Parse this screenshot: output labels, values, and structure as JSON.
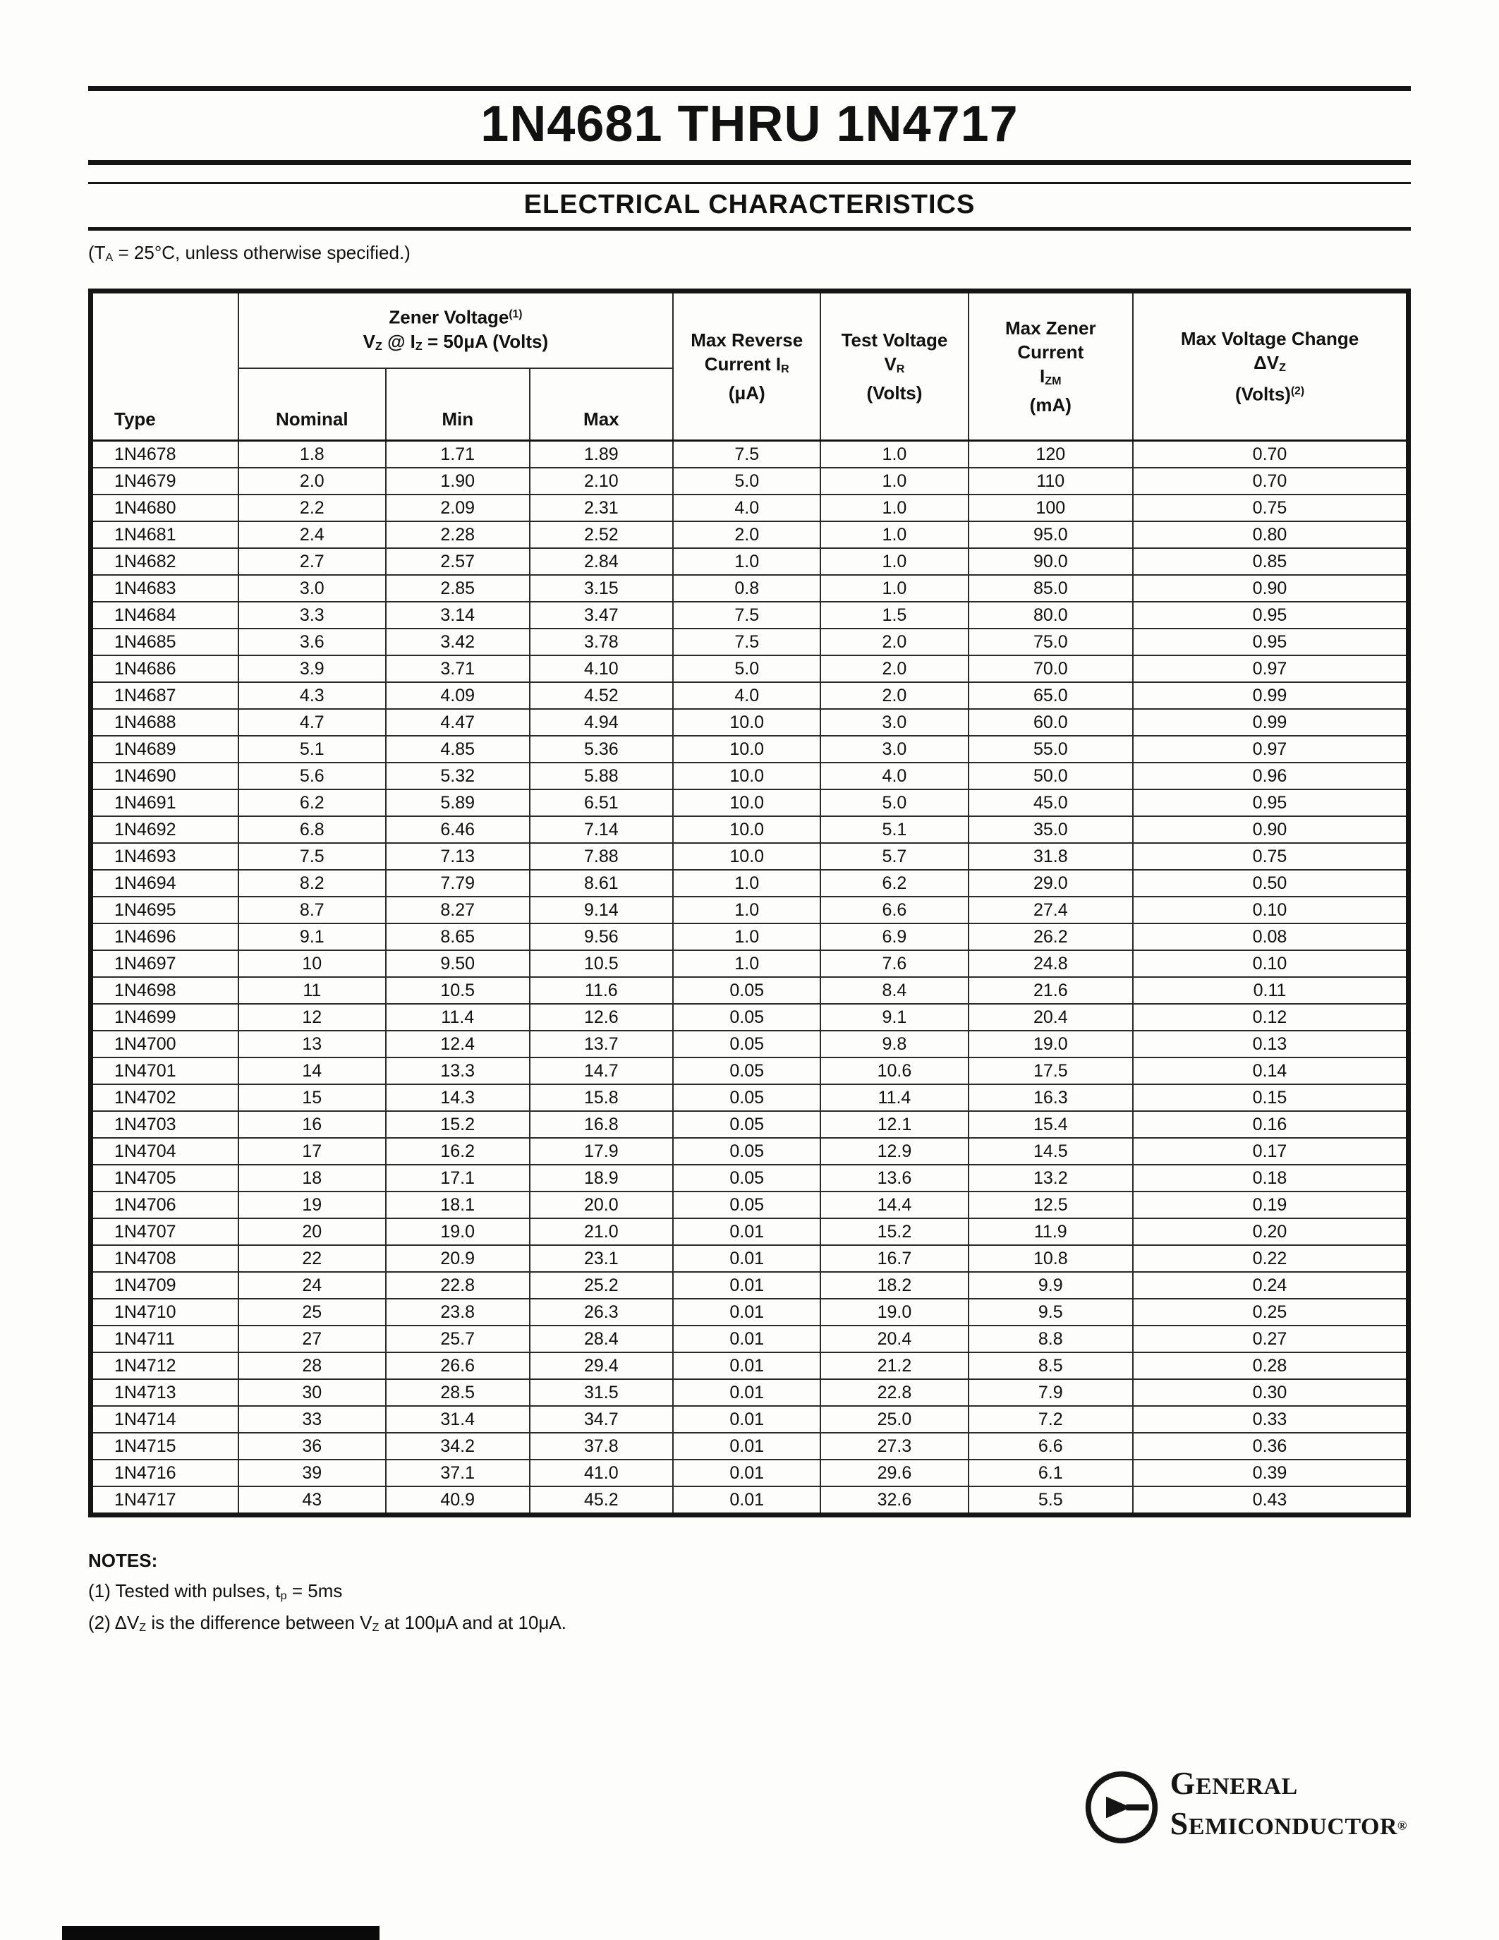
{
  "page": {
    "title": "1N4681 THRU 1N4717",
    "section_title": "ELECTRICAL CHARACTERISTICS",
    "condition": {
      "pre": "(T",
      "sub": "A",
      "post": " = 25°C, unless otherwise specified.)"
    }
  },
  "table": {
    "header": {
      "type_label": "Type",
      "zener": {
        "title": "Zener Voltage",
        "title_sup": "(1)",
        "l2_p1": "V",
        "l2_s1": "Z",
        "l2_p2": " @ I",
        "l2_s2": "Z",
        "l2_p3": " = 50μA (Volts)",
        "nominal": "Nominal",
        "min": "Min",
        "max": "Max"
      },
      "reverse": {
        "l1": "Max Reverse",
        "l2": "Current I",
        "l2_sub": "R",
        "l3": "(μA)"
      },
      "test": {
        "l1": "Test Voltage",
        "l2": "V",
        "l2_sub": "R",
        "l3": "(Volts)"
      },
      "izm": {
        "l1": "Max Zener",
        "l2": "Current",
        "l3": "I",
        "l3_sub": "ZM",
        "l4": "(mA)"
      },
      "dvz": {
        "l1": "Max Voltage Change",
        "l2": "ΔV",
        "l2_sub": "Z",
        "l3": "(Volts)",
        "l3_sup": "(2)"
      }
    },
    "rows": [
      [
        "1N4678",
        "1.8",
        "1.71",
        "1.89",
        "7.5",
        "1.0",
        "120",
        "0.70"
      ],
      [
        "1N4679",
        "2.0",
        "1.90",
        "2.10",
        "5.0",
        "1.0",
        "110",
        "0.70"
      ],
      [
        "1N4680",
        "2.2",
        "2.09",
        "2.31",
        "4.0",
        "1.0",
        "100",
        "0.75"
      ],
      [
        "1N4681",
        "2.4",
        "2.28",
        "2.52",
        "2.0",
        "1.0",
        "95.0",
        "0.80"
      ],
      [
        "1N4682",
        "2.7",
        "2.57",
        "2.84",
        "1.0",
        "1.0",
        "90.0",
        "0.85"
      ],
      [
        "1N4683",
        "3.0",
        "2.85",
        "3.15",
        "0.8",
        "1.0",
        "85.0",
        "0.90"
      ],
      [
        "1N4684",
        "3.3",
        "3.14",
        "3.47",
        "7.5",
        "1.5",
        "80.0",
        "0.95"
      ],
      [
        "1N4685",
        "3.6",
        "3.42",
        "3.78",
        "7.5",
        "2.0",
        "75.0",
        "0.95"
      ],
      [
        "1N4686",
        "3.9",
        "3.71",
        "4.10",
        "5.0",
        "2.0",
        "70.0",
        "0.97"
      ],
      [
        "1N4687",
        "4.3",
        "4.09",
        "4.52",
        "4.0",
        "2.0",
        "65.0",
        "0.99"
      ],
      [
        "1N4688",
        "4.7",
        "4.47",
        "4.94",
        "10.0",
        "3.0",
        "60.0",
        "0.99"
      ],
      [
        "1N4689",
        "5.1",
        "4.85",
        "5.36",
        "10.0",
        "3.0",
        "55.0",
        "0.97"
      ],
      [
        "1N4690",
        "5.6",
        "5.32",
        "5.88",
        "10.0",
        "4.0",
        "50.0",
        "0.96"
      ],
      [
        "1N4691",
        "6.2",
        "5.89",
        "6.51",
        "10.0",
        "5.0",
        "45.0",
        "0.95"
      ],
      [
        "1N4692",
        "6.8",
        "6.46",
        "7.14",
        "10.0",
        "5.1",
        "35.0",
        "0.90"
      ],
      [
        "1N4693",
        "7.5",
        "7.13",
        "7.88",
        "10.0",
        "5.7",
        "31.8",
        "0.75"
      ],
      [
        "1N4694",
        "8.2",
        "7.79",
        "8.61",
        "1.0",
        "6.2",
        "29.0",
        "0.50"
      ],
      [
        "1N4695",
        "8.7",
        "8.27",
        "9.14",
        "1.0",
        "6.6",
        "27.4",
        "0.10"
      ],
      [
        "1N4696",
        "9.1",
        "8.65",
        "9.56",
        "1.0",
        "6.9",
        "26.2",
        "0.08"
      ],
      [
        "1N4697",
        "10",
        "9.50",
        "10.5",
        "1.0",
        "7.6",
        "24.8",
        "0.10"
      ],
      [
        "1N4698",
        "11",
        "10.5",
        "11.6",
        "0.05",
        "8.4",
        "21.6",
        "0.11"
      ],
      [
        "1N4699",
        "12",
        "11.4",
        "12.6",
        "0.05",
        "9.1",
        "20.4",
        "0.12"
      ],
      [
        "1N4700",
        "13",
        "12.4",
        "13.7",
        "0.05",
        "9.8",
        "19.0",
        "0.13"
      ],
      [
        "1N4701",
        "14",
        "13.3",
        "14.7",
        "0.05",
        "10.6",
        "17.5",
        "0.14"
      ],
      [
        "1N4702",
        "15",
        "14.3",
        "15.8",
        "0.05",
        "11.4",
        "16.3",
        "0.15"
      ],
      [
        "1N4703",
        "16",
        "15.2",
        "16.8",
        "0.05",
        "12.1",
        "15.4",
        "0.16"
      ],
      [
        "1N4704",
        "17",
        "16.2",
        "17.9",
        "0.05",
        "12.9",
        "14.5",
        "0.17"
      ],
      [
        "1N4705",
        "18",
        "17.1",
        "18.9",
        "0.05",
        "13.6",
        "13.2",
        "0.18"
      ],
      [
        "1N4706",
        "19",
        "18.1",
        "20.0",
        "0.05",
        "14.4",
        "12.5",
        "0.19"
      ],
      [
        "1N4707",
        "20",
        "19.0",
        "21.0",
        "0.01",
        "15.2",
        "11.9",
        "0.20"
      ],
      [
        "1N4708",
        "22",
        "20.9",
        "23.1",
        "0.01",
        "16.7",
        "10.8",
        "0.22"
      ],
      [
        "1N4709",
        "24",
        "22.8",
        "25.2",
        "0.01",
        "18.2",
        "9.9",
        "0.24"
      ],
      [
        "1N4710",
        "25",
        "23.8",
        "26.3",
        "0.01",
        "19.0",
        "9.5",
        "0.25"
      ],
      [
        "1N4711",
        "27",
        "25.7",
        "28.4",
        "0.01",
        "20.4",
        "8.8",
        "0.27"
      ],
      [
        "1N4712",
        "28",
        "26.6",
        "29.4",
        "0.01",
        "21.2",
        "8.5",
        "0.28"
      ],
      [
        "1N4713",
        "30",
        "28.5",
        "31.5",
        "0.01",
        "22.8",
        "7.9",
        "0.30"
      ],
      [
        "1N4714",
        "33",
        "31.4",
        "34.7",
        "0.01",
        "25.0",
        "7.2",
        "0.33"
      ],
      [
        "1N4715",
        "36",
        "34.2",
        "37.8",
        "0.01",
        "27.3",
        "6.6",
        "0.36"
      ],
      [
        "1N4716",
        "39",
        "37.1",
        "41.0",
        "0.01",
        "29.6",
        "6.1",
        "0.39"
      ],
      [
        "1N4717",
        "43",
        "40.9",
        "45.2",
        "0.01",
        "32.6",
        "5.5",
        "0.43"
      ]
    ]
  },
  "notes": {
    "title": "NOTES:",
    "n1": {
      "p1": "(1) Tested with pulses, t",
      "sub": "p",
      "p2": " = 5ms"
    },
    "n2": {
      "p1": "(2) ΔV",
      "s1": "Z",
      "p2": " is the difference between V",
      "s2": "Z",
      "p3": " at 100μA and at 10μA."
    }
  },
  "footer": {
    "b1_init": "G",
    "b1_rest": "ENERAL",
    "b2_init": "S",
    "b2_rest": "EMICONDUCTOR",
    "registered": "®"
  }
}
